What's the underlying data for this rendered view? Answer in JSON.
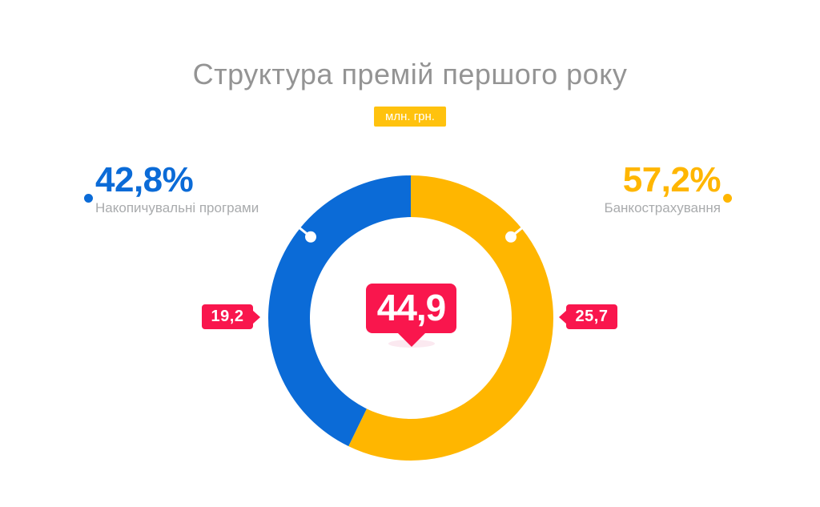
{
  "page": {
    "background": "#ffffff"
  },
  "colors": {
    "red": "#f9164d",
    "gold": "#ffc20e",
    "title-gray": "#949494",
    "label-gray": "#a9abad",
    "shadow-pink": "#fbe9f0"
  },
  "chart_data": {
    "type": "pie",
    "variant": "donut",
    "title": "Структура премій першого року",
    "unit": "млн. грн.",
    "center_total": 44.9,
    "center_total_label": "44,9",
    "inner_radius_ratio": 0.71,
    "rotation": "slices start at 12 o'clock, clockwise",
    "legend_position": "sides",
    "slices": [
      {
        "name": "Накопичувальні програми",
        "percent": 42.8,
        "percent_label": "42,8%",
        "value": 19.2,
        "value_label": "19,2",
        "color": "#0b6bd7",
        "start_deg": 205.9,
        "end_deg": 360,
        "leader_angle_deg": 309,
        "label_side": "left"
      },
      {
        "name": "Банкострахування",
        "percent": 57.2,
        "percent_label": "57,2%",
        "value": 25.7,
        "value_label": "25,7",
        "color": "#ffb600",
        "start_deg": 0,
        "end_deg": 205.9,
        "leader_angle_deg": 51,
        "label_side": "right"
      }
    ]
  }
}
